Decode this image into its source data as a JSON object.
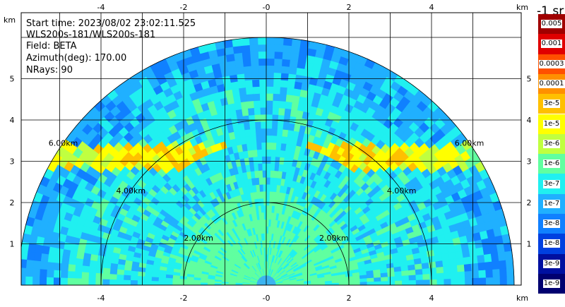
{
  "info": {
    "start_time": "Start time: 2023/08/02 23:02:11.525",
    "instrument": "WLS200s-181/WLS200s-181",
    "field": "Field: BETA",
    "azimuth": "Azimuth(deg): 170.00",
    "nrays": "NRays: 90"
  },
  "axis": {
    "unit": "km",
    "x_ticks": [
      "-4",
      "-2",
      "-0",
      "2",
      "4"
    ],
    "y_ticks": [
      "1",
      "2",
      "3",
      "4",
      "5"
    ],
    "range_rings": [
      "2.00km",
      "4.00km",
      "6.00km"
    ]
  },
  "colorbar": {
    "title": "-1 sr",
    "labels": [
      "0.005",
      "0.001",
      "0.0003",
      "0.0001",
      "3e-5",
      "1e-5",
      "3e-6",
      "1e-6",
      "3e-7",
      "1e-7",
      "3e-8",
      "1e-8",
      "3e-9",
      "1e-9"
    ],
    "colors": [
      "#a00000",
      "#e00000",
      "#ff5000",
      "#ff9000",
      "#ffc000",
      "#ffff00",
      "#c0ff40",
      "#60ffa0",
      "#20f0f0",
      "#20b0ff",
      "#1080ff",
      "#0040e0",
      "#0010a0",
      "#000070"
    ]
  }
}
